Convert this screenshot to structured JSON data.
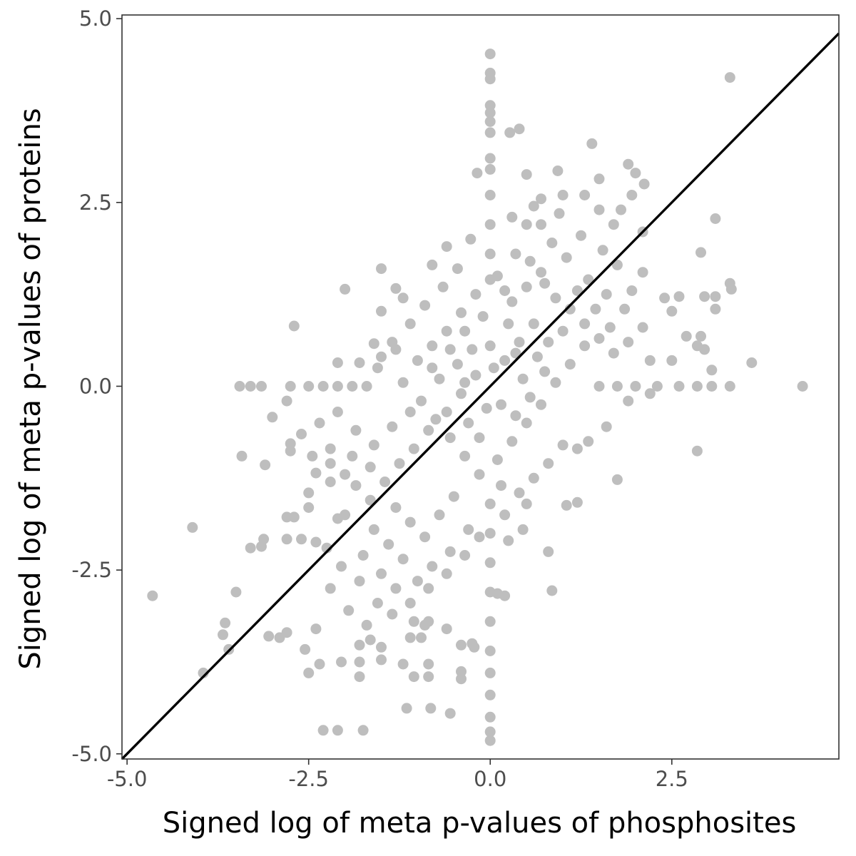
{
  "chart_data": {
    "type": "scatter",
    "title": "",
    "xlabel": "Signed log of meta p-values of phosphosites",
    "ylabel": "Signed log of meta p-values of proteins",
    "xlim": [
      -5.07,
      4.8
    ],
    "ylim": [
      -5.07,
      5.05
    ],
    "x_ticks": [
      -5.0,
      -2.5,
      0.0,
      2.5
    ],
    "x_tick_labels": [
      "-5.0",
      "-2.5",
      "0.0",
      "2.5"
    ],
    "y_ticks": [
      -5.0,
      -2.5,
      0.0,
      2.5,
      5.0
    ],
    "y_tick_labels": [
      "-5.0",
      "-2.5",
      "0.0",
      "2.5",
      "5.0"
    ],
    "grid": false,
    "point_color": "#bebebe",
    "line_color": "#000000",
    "reference_line": {
      "slope": 1,
      "intercept": 0
    },
    "points": [
      {
        "x": 0.0,
        "y": 4.52
      },
      {
        "x": 0.0,
        "y": 4.26
      },
      {
        "x": 0.0,
        "y": 4.18
      },
      {
        "x": 0.0,
        "y": 3.82
      },
      {
        "x": 0.0,
        "y": 3.72
      },
      {
        "x": 0.0,
        "y": 3.6
      },
      {
        "x": 0.0,
        "y": 3.45
      },
      {
        "x": 0.0,
        "y": 3.1
      },
      {
        "x": 0.0,
        "y": 2.95
      },
      {
        "x": 0.0,
        "y": 2.6
      },
      {
        "x": 0.0,
        "y": 2.2
      },
      {
        "x": 0.0,
        "y": 1.8
      },
      {
        "x": 0.0,
        "y": 1.45
      },
      {
        "x": 0.0,
        "y": -1.6
      },
      {
        "x": 0.0,
        "y": -2.0
      },
      {
        "x": 0.0,
        "y": -2.4
      },
      {
        "x": 0.0,
        "y": -2.8
      },
      {
        "x": 0.0,
        "y": -3.2
      },
      {
        "x": 0.0,
        "y": -3.6
      },
      {
        "x": 0.0,
        "y": -3.9
      },
      {
        "x": 0.0,
        "y": -4.2
      },
      {
        "x": 0.0,
        "y": -4.5
      },
      {
        "x": 0.0,
        "y": -4.7
      },
      {
        "x": 0.0,
        "y": -4.82
      },
      {
        "x": -3.45,
        "y": 0.0
      },
      {
        "x": -3.3,
        "y": 0.0
      },
      {
        "x": -3.15,
        "y": 0.0
      },
      {
        "x": -2.75,
        "y": 0.0
      },
      {
        "x": -2.5,
        "y": 0.0
      },
      {
        "x": -2.3,
        "y": 0.0
      },
      {
        "x": -2.1,
        "y": 0.0
      },
      {
        "x": -1.9,
        "y": 0.0
      },
      {
        "x": -1.7,
        "y": 0.0
      },
      {
        "x": 1.5,
        "y": 0.0
      },
      {
        "x": 1.75,
        "y": 0.0
      },
      {
        "x": 2.0,
        "y": 0.0
      },
      {
        "x": 2.3,
        "y": 0.0
      },
      {
        "x": 2.6,
        "y": 0.0
      },
      {
        "x": 2.85,
        "y": 0.0
      },
      {
        "x": 3.05,
        "y": 0.0
      },
      {
        "x": 3.3,
        "y": 0.0
      },
      {
        "x": 4.3,
        "y": 0.0
      },
      {
        "x": 3.3,
        "y": 4.2
      },
      {
        "x": 1.4,
        "y": 3.3
      },
      {
        "x": 0.4,
        "y": 3.5
      },
      {
        "x": 0.27,
        "y": 3.45
      },
      {
        "x": -0.18,
        "y": 2.9
      },
      {
        "x": 0.5,
        "y": 2.88
      },
      {
        "x": 0.93,
        "y": 2.93
      },
      {
        "x": 1.9,
        "y": 3.02
      },
      {
        "x": 2.0,
        "y": 2.9
      },
      {
        "x": 1.5,
        "y": 2.82
      },
      {
        "x": 2.12,
        "y": 2.75
      },
      {
        "x": 0.7,
        "y": 2.55
      },
      {
        "x": 1.0,
        "y": 2.6
      },
      {
        "x": 1.3,
        "y": 2.6
      },
      {
        "x": 1.5,
        "y": 2.4
      },
      {
        "x": 1.8,
        "y": 2.4
      },
      {
        "x": 1.95,
        "y": 2.6
      },
      {
        "x": 3.1,
        "y": 2.28
      },
      {
        "x": 2.9,
        "y": 1.82
      },
      {
        "x": 2.1,
        "y": 2.1
      },
      {
        "x": 1.7,
        "y": 2.2
      },
      {
        "x": 0.5,
        "y": 2.2
      },
      {
        "x": 0.7,
        "y": 2.2
      },
      {
        "x": -0.27,
        "y": 2.0
      },
      {
        "x": -0.6,
        "y": 1.9
      },
      {
        "x": -0.8,
        "y": 1.65
      },
      {
        "x": -1.5,
        "y": 1.6
      },
      {
        "x": -2.0,
        "y": 1.32
      },
      {
        "x": -1.3,
        "y": 1.33
      },
      {
        "x": 3.3,
        "y": 1.4
      },
      {
        "x": 3.32,
        "y": 1.32
      },
      {
        "x": 2.1,
        "y": 1.55
      },
      {
        "x": 2.6,
        "y": 1.22
      },
      {
        "x": 2.95,
        "y": 1.22
      },
      {
        "x": 3.1,
        "y": 1.22
      },
      {
        "x": 2.4,
        "y": 1.2
      },
      {
        "x": 2.5,
        "y": 1.02
      },
      {
        "x": 3.1,
        "y": 1.05
      },
      {
        "x": -1.5,
        "y": 1.02
      },
      {
        "x": -1.2,
        "y": 1.2
      },
      {
        "x": -2.7,
        "y": 0.82
      },
      {
        "x": -1.6,
        "y": 0.58
      },
      {
        "x": -1.3,
        "y": 0.5
      },
      {
        "x": -2.1,
        "y": 0.32
      },
      {
        "x": -1.8,
        "y": 0.32
      },
      {
        "x": -1.5,
        "y": 0.4
      },
      {
        "x": 2.7,
        "y": 0.68
      },
      {
        "x": 2.85,
        "y": 0.55
      },
      {
        "x": 2.9,
        "y": 0.68
      },
      {
        "x": 2.95,
        "y": 0.5
      },
      {
        "x": 2.5,
        "y": 0.35
      },
      {
        "x": 3.6,
        "y": 0.32
      },
      {
        "x": 3.05,
        "y": 0.22
      },
      {
        "x": 2.2,
        "y": 0.35
      },
      {
        "x": 2.2,
        "y": -0.1
      },
      {
        "x": 1.9,
        "y": -0.2
      },
      {
        "x": -3.0,
        "y": -0.42
      },
      {
        "x": -2.8,
        "y": -0.2
      },
      {
        "x": -2.75,
        "y": -0.78
      },
      {
        "x": -2.75,
        "y": -0.88
      },
      {
        "x": -3.42,
        "y": -0.95
      },
      {
        "x": -3.1,
        "y": -1.07
      },
      {
        "x": -2.4,
        "y": -1.18
      },
      {
        "x": -2.2,
        "y": -0.85
      },
      {
        "x": -2.5,
        "y": -1.45
      },
      {
        "x": -2.5,
        "y": -1.65
      },
      {
        "x": -2.2,
        "y": -1.3
      },
      {
        "x": -2.0,
        "y": -1.2
      },
      {
        "x": -2.8,
        "y": -1.78
      },
      {
        "x": -2.7,
        "y": -1.78
      },
      {
        "x": -2.0,
        "y": -1.75
      },
      {
        "x": -2.1,
        "y": -1.8
      },
      {
        "x": -2.8,
        "y": -2.08
      },
      {
        "x": -2.6,
        "y": -2.08
      },
      {
        "x": -2.4,
        "y": -2.12
      },
      {
        "x": -3.12,
        "y": -2.08
      },
      {
        "x": -3.15,
        "y": -2.18
      },
      {
        "x": -3.3,
        "y": -2.2
      },
      {
        "x": -4.1,
        "y": -1.92
      },
      {
        "x": -4.65,
        "y": -2.85
      },
      {
        "x": -3.5,
        "y": -2.8
      },
      {
        "x": -3.65,
        "y": -3.22
      },
      {
        "x": -3.68,
        "y": -3.38
      },
      {
        "x": -3.6,
        "y": -3.58
      },
      {
        "x": -3.95,
        "y": -3.9
      },
      {
        "x": -3.05,
        "y": -3.4
      },
      {
        "x": -2.9,
        "y": -3.42
      },
      {
        "x": -2.8,
        "y": -3.35
      },
      {
        "x": -2.55,
        "y": -3.58
      },
      {
        "x": -2.5,
        "y": -3.9
      },
      {
        "x": -2.35,
        "y": -3.78
      },
      {
        "x": -2.05,
        "y": -3.75
      },
      {
        "x": -1.8,
        "y": -3.75
      },
      {
        "x": -1.8,
        "y": -3.95
      },
      {
        "x": -1.5,
        "y": -3.72
      },
      {
        "x": -1.2,
        "y": -3.78
      },
      {
        "x": -1.05,
        "y": -3.95
      },
      {
        "x": -0.85,
        "y": -3.78
      },
      {
        "x": -0.85,
        "y": -3.95
      },
      {
        "x": -0.4,
        "y": -3.88
      },
      {
        "x": -0.4,
        "y": -3.98
      },
      {
        "x": -1.15,
        "y": -4.38
      },
      {
        "x": -0.82,
        "y": -4.38
      },
      {
        "x": -0.55,
        "y": -4.45
      },
      {
        "x": -2.3,
        "y": -4.68
      },
      {
        "x": -2.1,
        "y": -4.68
      },
      {
        "x": -1.75,
        "y": -4.68
      },
      {
        "x": -2.4,
        "y": -3.3
      },
      {
        "x": -1.8,
        "y": -3.52
      },
      {
        "x": -1.65,
        "y": -3.45
      },
      {
        "x": -1.5,
        "y": -3.55
      },
      {
        "x": -1.1,
        "y": -3.42
      },
      {
        "x": -0.95,
        "y": -3.42
      },
      {
        "x": -0.4,
        "y": -3.52
      },
      {
        "x": -0.25,
        "y": -3.5
      },
      {
        "x": -0.22,
        "y": -3.55
      },
      {
        "x": -0.6,
        "y": -3.3
      },
      {
        "x": -0.9,
        "y": -3.25
      },
      {
        "x": -1.05,
        "y": -3.2
      },
      {
        "x": -0.85,
        "y": -3.2
      },
      {
        "x": 0.1,
        "y": -2.82
      },
      {
        "x": 0.2,
        "y": -2.85
      },
      {
        "x": 0.85,
        "y": -2.78
      },
      {
        "x": 0.8,
        "y": -2.25
      },
      {
        "x": 0.5,
        "y": -1.6
      },
      {
        "x": 1.05,
        "y": -1.62
      },
      {
        "x": 1.2,
        "y": -1.58
      },
      {
        "x": 1.75,
        "y": -1.27
      },
      {
        "x": 2.85,
        "y": -0.88
      },
      {
        "x": 1.6,
        "y": -0.55
      },
      {
        "x": 1.35,
        "y": -0.75
      },
      {
        "x": 1.2,
        "y": -0.85
      },
      {
        "x": -1.0,
        "y": 0.35
      },
      {
        "x": -0.8,
        "y": 0.55
      },
      {
        "x": -0.6,
        "y": 0.75
      },
      {
        "x": -0.4,
        "y": 1.0
      },
      {
        "x": -0.2,
        "y": 1.25
      },
      {
        "x": 0.1,
        "y": 1.5
      },
      {
        "x": 0.3,
        "y": 1.15
      },
      {
        "x": 0.5,
        "y": 1.35
      },
      {
        "x": 0.7,
        "y": 1.55
      },
      {
        "x": 0.9,
        "y": 1.2
      },
      {
        "x": 1.1,
        "y": 1.05
      },
      {
        "x": 1.3,
        "y": 0.85
      },
      {
        "x": 1.5,
        "y": 0.65
      },
      {
        "x": 1.7,
        "y": 0.45
      },
      {
        "x": 1.05,
        "y": 1.75
      },
      {
        "x": 1.35,
        "y": 1.45
      },
      {
        "x": 1.6,
        "y": 1.25
      },
      {
        "x": 1.85,
        "y": 1.05
      },
      {
        "x": 0.85,
        "y": 1.95
      },
      {
        "x": 0.35,
        "y": 1.8
      },
      {
        "x": -0.45,
        "y": 1.6
      },
      {
        "x": -0.65,
        "y": 1.35
      },
      {
        "x": -0.9,
        "y": 1.1
      },
      {
        "x": -1.1,
        "y": 0.85
      },
      {
        "x": -1.35,
        "y": 0.6
      },
      {
        "x": -1.55,
        "y": 0.25
      },
      {
        "x": -1.2,
        "y": 0.05
      },
      {
        "x": -0.95,
        "y": -0.2
      },
      {
        "x": -0.75,
        "y": -0.45
      },
      {
        "x": -0.55,
        "y": -0.7
      },
      {
        "x": -0.35,
        "y": -0.95
      },
      {
        "x": -0.15,
        "y": -1.2
      },
      {
        "x": 0.1,
        "y": -1.0
      },
      {
        "x": 0.3,
        "y": -0.75
      },
      {
        "x": 0.5,
        "y": -0.5
      },
      {
        "x": 0.7,
        "y": -0.25
      },
      {
        "x": 0.9,
        "y": 0.05
      },
      {
        "x": 1.1,
        "y": 0.3
      },
      {
        "x": 1.3,
        "y": 0.55
      },
      {
        "x": 0.2,
        "y": 0.35
      },
      {
        "x": 0.4,
        "y": 0.6
      },
      {
        "x": 0.6,
        "y": 0.85
      },
      {
        "x": -0.2,
        "y": 0.15
      },
      {
        "x": -0.4,
        "y": -0.1
      },
      {
        "x": -0.6,
        "y": -0.35
      },
      {
        "x": 0.0,
        "y": 0.55
      },
      {
        "x": 0.15,
        "y": -0.25
      },
      {
        "x": -0.25,
        "y": 0.5
      },
      {
        "x": 0.45,
        "y": 0.1
      },
      {
        "x": 0.65,
        "y": 0.4
      },
      {
        "x": -0.45,
        "y": 0.3
      },
      {
        "x": -0.7,
        "y": 0.1
      },
      {
        "x": -0.3,
        "y": -0.5
      },
      {
        "x": 0.25,
        "y": 0.85
      },
      {
        "x": 0.8,
        "y": 0.6
      },
      {
        "x": -0.85,
        "y": -0.6
      },
      {
        "x": -1.05,
        "y": -0.85
      },
      {
        "x": -1.25,
        "y": -1.05
      },
      {
        "x": -1.45,
        "y": -1.3
      },
      {
        "x": -1.65,
        "y": -1.55
      },
      {
        "x": -1.85,
        "y": -1.35
      },
      {
        "x": -1.3,
        "y": -1.65
      },
      {
        "x": -1.1,
        "y": -1.85
      },
      {
        "x": -0.9,
        "y": -2.05
      },
      {
        "x": -0.7,
        "y": -1.75
      },
      {
        "x": -0.5,
        "y": -1.5
      },
      {
        "x": -0.3,
        "y": -1.95
      },
      {
        "x": -0.55,
        "y": -2.25
      },
      {
        "x": -0.8,
        "y": -2.45
      },
      {
        "x": -1.0,
        "y": -2.65
      },
      {
        "x": -1.2,
        "y": -2.35
      },
      {
        "x": -1.4,
        "y": -2.15
      },
      {
        "x": -1.6,
        "y": -1.95
      },
      {
        "x": -1.75,
        "y": -2.3
      },
      {
        "x": -1.5,
        "y": -2.55
      },
      {
        "x": -1.3,
        "y": -2.75
      },
      {
        "x": -1.55,
        "y": -2.95
      },
      {
        "x": -1.8,
        "y": -2.65
      },
      {
        "x": -2.05,
        "y": -2.45
      },
      {
        "x": -2.25,
        "y": -2.2
      },
      {
        "x": -2.2,
        "y": -2.75
      },
      {
        "x": -1.95,
        "y": -3.05
      },
      {
        "x": -1.7,
        "y": -3.25
      },
      {
        "x": -1.35,
        "y": -3.1
      },
      {
        "x": -1.1,
        "y": -2.95
      },
      {
        "x": -0.85,
        "y": -2.75
      },
      {
        "x": -0.6,
        "y": -2.55
      },
      {
        "x": -0.35,
        "y": -2.3
      },
      {
        "x": -0.15,
        "y": -2.05
      },
      {
        "x": 0.2,
        "y": -1.75
      },
      {
        "x": 0.4,
        "y": -1.45
      },
      {
        "x": 0.6,
        "y": -1.25
      },
      {
        "x": 0.8,
        "y": -1.05
      },
      {
        "x": 1.0,
        "y": -0.8
      },
      {
        "x": 0.25,
        "y": -2.1
      },
      {
        "x": 0.45,
        "y": -1.95
      },
      {
        "x": 0.15,
        "y": -1.35
      },
      {
        "x": -2.6,
        "y": -0.65
      },
      {
        "x": -2.35,
        "y": -0.5
      },
      {
        "x": -2.1,
        "y": -0.35
      },
      {
        "x": -1.85,
        "y": -0.6
      },
      {
        "x": -1.6,
        "y": -0.8
      },
      {
        "x": -1.35,
        "y": -0.55
      },
      {
        "x": -1.1,
        "y": -0.35
      },
      {
        "x": -2.45,
        "y": -0.95
      },
      {
        "x": -2.2,
        "y": -1.05
      },
      {
        "x": -1.9,
        "y": -0.95
      },
      {
        "x": -1.65,
        "y": -1.1
      },
      {
        "x": 1.0,
        "y": 0.75
      },
      {
        "x": 1.2,
        "y": 1.3
      },
      {
        "x": 1.45,
        "y": 1.05
      },
      {
        "x": 1.65,
        "y": 0.8
      },
      {
        "x": 1.9,
        "y": 0.6
      },
      {
        "x": 2.1,
        "y": 0.8
      },
      {
        "x": 1.95,
        "y": 1.3
      },
      {
        "x": 1.75,
        "y": 1.65
      },
      {
        "x": 1.55,
        "y": 1.85
      },
      {
        "x": 1.25,
        "y": 2.05
      },
      {
        "x": 0.95,
        "y": 2.35
      },
      {
        "x": 0.6,
        "y": 2.45
      },
      {
        "x": 0.3,
        "y": 2.3
      },
      {
        "x": 0.55,
        "y": 1.7
      },
      {
        "x": 0.75,
        "y": 1.4
      },
      {
        "x": 0.2,
        "y": 1.3
      },
      {
        "x": -0.1,
        "y": 0.95
      },
      {
        "x": -0.35,
        "y": 0.75
      },
      {
        "x": -0.55,
        "y": 0.5
      },
      {
        "x": -0.8,
        "y": 0.25
      },
      {
        "x": 0.55,
        "y": -0.15
      },
      {
        "x": 0.75,
        "y": 0.2
      },
      {
        "x": 0.35,
        "y": -0.4
      },
      {
        "x": -0.15,
        "y": -0.7
      },
      {
        "x": 0.05,
        "y": 0.25
      },
      {
        "x": -0.05,
        "y": -0.3
      },
      {
        "x": 0.35,
        "y": 0.45
      },
      {
        "x": -0.35,
        "y": 0.05
      }
    ]
  }
}
